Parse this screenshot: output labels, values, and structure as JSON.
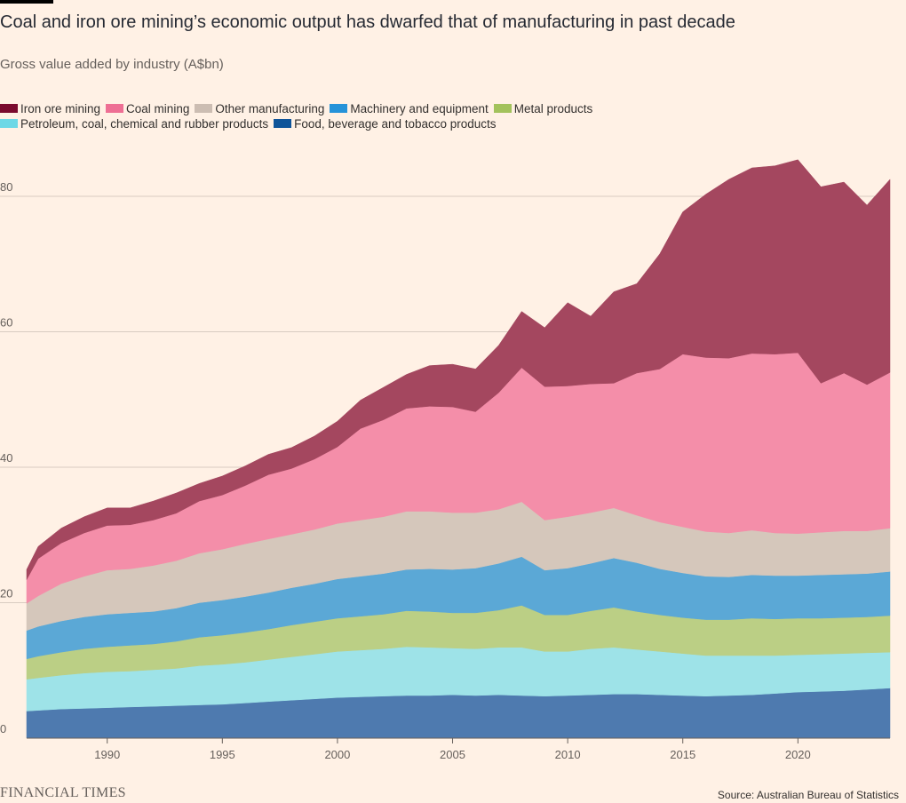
{
  "header": {
    "title": "Coal and iron ore mining’s economic output has dwarfed that of manufacturing in past decade",
    "subtitle": "Gross value added by industry (A$bn)"
  },
  "legend": [
    {
      "label": "Iron ore mining",
      "color": "#7a0a2e"
    },
    {
      "label": "Coal mining",
      "color": "#ee6f94"
    },
    {
      "label": "Other manufacturing",
      "color": "#ccbdb2"
    },
    {
      "label": "Machinery and equipment",
      "color": "#2693d9"
    },
    {
      "label": "Metal products",
      "color": "#a3c25c"
    },
    {
      "label": "Petroleum, coal, chemical and rubber products",
      "color": "#6dd8e6"
    },
    {
      "label": "Food, beverage and tobacco products",
      "color": "#0f5499"
    }
  ],
  "footer": {
    "logo": "FINANCIAL TIMES",
    "source": "Source: Australian Bureau of Statistics"
  },
  "chart_data": {
    "type": "area",
    "stacked": true,
    "x": [
      1986.5,
      1987,
      1988,
      1989,
      1990,
      1991,
      1992,
      1993,
      1994,
      1995,
      1996,
      1997,
      1998,
      1999,
      2000,
      2001,
      2002,
      2003,
      2004,
      2005,
      2006,
      2007,
      2008,
      2009,
      2010,
      2011,
      2012,
      2013,
      2014,
      2015,
      2016,
      2017,
      2018,
      2019,
      2020,
      2021,
      2022,
      2023,
      2024
    ],
    "xticks": [
      1990,
      1995,
      2000,
      2005,
      2010,
      2015,
      2020
    ],
    "yticks": [
      0,
      20,
      40,
      60,
      80
    ],
    "ylim": [
      0,
      88
    ],
    "xlim": [
      1986.5,
      2024
    ],
    "grid": true,
    "legend_position": "top-left",
    "series": [
      {
        "name": "Food, beverage and tobacco products",
        "color": "#4e7aaf",
        "values": [
          4.0,
          4.1,
          4.3,
          4.4,
          4.5,
          4.6,
          4.7,
          4.8,
          4.9,
          5.0,
          5.2,
          5.4,
          5.6,
          5.8,
          6.0,
          6.1,
          6.2,
          6.3,
          6.3,
          6.4,
          6.3,
          6.4,
          6.3,
          6.2,
          6.3,
          6.4,
          6.5,
          6.5,
          6.4,
          6.3,
          6.2,
          6.3,
          6.4,
          6.6,
          6.8,
          6.9,
          7.0,
          7.2,
          7.4
        ]
      },
      {
        "name": "Petroleum, coal, chemical and rubber products",
        "color": "#9ee3e8",
        "values": [
          4.7,
          4.8,
          5.0,
          5.2,
          5.3,
          5.3,
          5.4,
          5.5,
          5.8,
          5.9,
          6.0,
          6.2,
          6.4,
          6.6,
          6.8,
          6.9,
          7.0,
          7.2,
          7.1,
          6.9,
          6.9,
          7.0,
          7.1,
          6.6,
          6.5,
          6.8,
          6.9,
          6.6,
          6.4,
          6.2,
          6.0,
          5.9,
          5.8,
          5.6,
          5.5,
          5.5,
          5.5,
          5.4,
          5.3
        ]
      },
      {
        "name": "Metal products",
        "color": "#bbcf85",
        "values": [
          3.0,
          3.2,
          3.4,
          3.6,
          3.7,
          3.8,
          3.8,
          4.0,
          4.2,
          4.3,
          4.4,
          4.5,
          4.7,
          4.8,
          4.9,
          5.0,
          5.1,
          5.3,
          5.3,
          5.2,
          5.3,
          5.5,
          6.2,
          5.4,
          5.4,
          5.6,
          5.9,
          5.6,
          5.4,
          5.3,
          5.3,
          5.3,
          5.5,
          5.4,
          5.4,
          5.3,
          5.3,
          5.3,
          5.4
        ]
      },
      {
        "name": "Machinery and equipment",
        "color": "#5ba8d6",
        "values": [
          4.2,
          4.4,
          4.6,
          4.7,
          4.8,
          4.8,
          4.8,
          4.9,
          5.1,
          5.2,
          5.3,
          5.4,
          5.5,
          5.6,
          5.8,
          5.9,
          6.0,
          6.1,
          6.3,
          6.4,
          6.6,
          6.9,
          7.2,
          6.6,
          6.9,
          7.0,
          7.3,
          7.2,
          6.8,
          6.6,
          6.4,
          6.3,
          6.4,
          6.4,
          6.3,
          6.4,
          6.4,
          6.4,
          6.5
        ]
      },
      {
        "name": "Other manufacturing",
        "color": "#d5c7bb",
        "values": [
          4.0,
          4.5,
          5.5,
          6.0,
          6.5,
          6.5,
          6.8,
          7.0,
          7.3,
          7.5,
          7.8,
          7.9,
          7.9,
          8.0,
          8.2,
          8.3,
          8.4,
          8.6,
          8.5,
          8.4,
          8.2,
          8.0,
          8.1,
          7.4,
          7.6,
          7.5,
          7.4,
          7.0,
          6.9,
          6.8,
          6.6,
          6.5,
          6.6,
          6.3,
          6.2,
          6.3,
          6.4,
          6.3,
          6.4
        ]
      },
      {
        "name": "Coal mining",
        "color": "#f48ea9",
        "values": [
          3.5,
          5.5,
          6.0,
          6.4,
          6.6,
          6.5,
          6.7,
          7.0,
          7.7,
          8.0,
          8.6,
          9.5,
          9.7,
          10.4,
          11.3,
          13.5,
          14.3,
          15.2,
          15.5,
          15.6,
          14.9,
          17.2,
          19.8,
          19.7,
          19.3,
          19.0,
          18.4,
          21.0,
          22.6,
          25.5,
          25.7,
          25.8,
          26.1,
          26.4,
          26.7,
          22.0,
          23.3,
          21.6,
          23.0
        ]
      },
      {
        "name": "Iron ore mining",
        "color": "#a4475f",
        "values": [
          1.5,
          1.8,
          2.2,
          2.4,
          2.6,
          2.5,
          2.8,
          3.0,
          2.6,
          2.8,
          2.9,
          3.0,
          3.1,
          3.4,
          3.8,
          4.2,
          4.8,
          5.0,
          6.0,
          6.3,
          6.3,
          7.0,
          8.3,
          8.7,
          12.3,
          10.0,
          13.5,
          13.2,
          17.0,
          21.0,
          24.1,
          26.4,
          27.4,
          27.8,
          28.5,
          29.0,
          28.2,
          26.5,
          28.5
        ]
      }
    ]
  }
}
